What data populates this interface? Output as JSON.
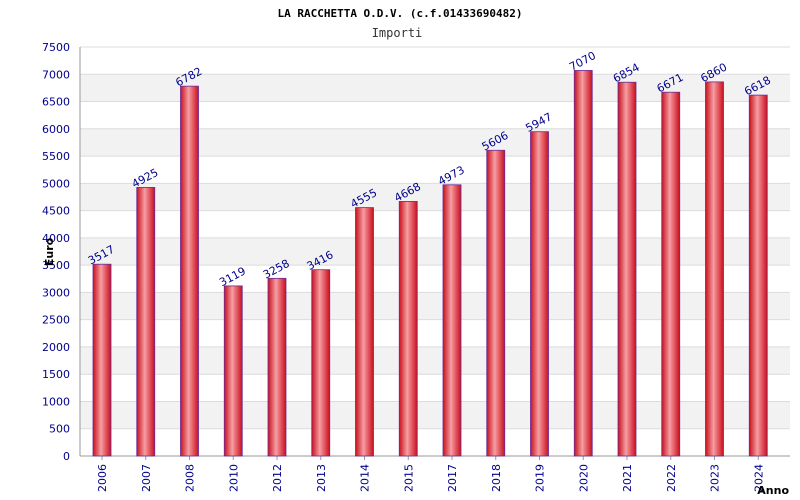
{
  "chart_data": {
    "type": "bar",
    "title": "LA RACCHETTA O.D.V. (c.f.01433690482)",
    "subtitle": "Importi",
    "ylabel": "Euro",
    "xlabel": "Anno",
    "ylim": [
      0,
      7500
    ],
    "ytick_step": 500,
    "grid": true,
    "categories": [
      "2006",
      "2007",
      "2008",
      "2010",
      "2012",
      "2013",
      "2014",
      "2015",
      "2017",
      "2018",
      "2019",
      "2020",
      "2021",
      "2022",
      "2023",
      "2024"
    ],
    "values": [
      3517,
      4925,
      6782,
      3119,
      3258,
      3416,
      4555,
      4668,
      4973,
      5606,
      5947,
      7070,
      6854,
      6671,
      6860,
      6618
    ],
    "bar_color": "#e8202a",
    "bar_edge_color": "#6a2a9a",
    "label_color": "#00008b"
  }
}
